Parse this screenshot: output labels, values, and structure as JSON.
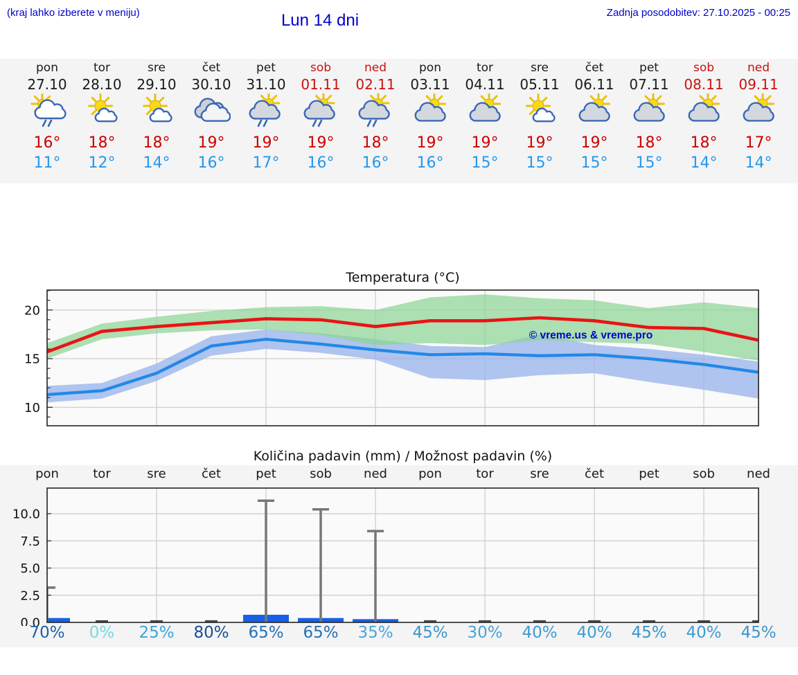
{
  "header": {
    "hint": "(kraj lahko izberete v meniju)",
    "title": "Lun 14 dni",
    "updated": "Zadnja posodobitev: 27.10.2025 - 00:25"
  },
  "colors": {
    "header_blue": "#0000cd",
    "high_temp_red": "#cc0000",
    "low_temp_blue": "#2497ef",
    "weekend_red": "#cc1111",
    "strip_bg": "#f4f4f4",
    "plot_bg": "#fafafa",
    "max_line": "#e81414",
    "min_line": "#2288e8",
    "max_band_green": "#8ed494",
    "min_band_blue": "#96b2ea",
    "precip_bar_blue": "#1661e6",
    "whisker_gray": "#777777"
  },
  "forecast": {
    "days": [
      {
        "name": "pon",
        "date": "27.10",
        "weekend": false,
        "icon": "sun-cloud-rain",
        "high": "16°",
        "low": "11°"
      },
      {
        "name": "tor",
        "date": "28.10",
        "weekend": false,
        "icon": "sun-small-cloud",
        "high": "18°",
        "low": "12°"
      },
      {
        "name": "sre",
        "date": "29.10",
        "weekend": false,
        "icon": "sun-small-cloud",
        "high": "18°",
        "low": "14°"
      },
      {
        "name": "čet",
        "date": "30.10",
        "weekend": false,
        "icon": "cloudy",
        "high": "19°",
        "low": "16°"
      },
      {
        "name": "pet",
        "date": "31.10",
        "weekend": false,
        "icon": "sun-gray-cloud-rain",
        "high": "19°",
        "low": "17°"
      },
      {
        "name": "sob",
        "date": "01.11",
        "weekend": true,
        "icon": "sun-gray-cloud-rain",
        "high": "19°",
        "low": "16°"
      },
      {
        "name": "ned",
        "date": "02.11",
        "weekend": true,
        "icon": "sun-gray-cloud-rain",
        "high": "18°",
        "low": "16°"
      },
      {
        "name": "pon",
        "date": "03.11",
        "weekend": false,
        "icon": "sun-gray-cloud",
        "high": "19°",
        "low": "16°"
      },
      {
        "name": "tor",
        "date": "04.11",
        "weekend": false,
        "icon": "sun-gray-cloud",
        "high": "19°",
        "low": "15°"
      },
      {
        "name": "sre",
        "date": "05.11",
        "weekend": false,
        "icon": "sun-small-cloud",
        "high": "19°",
        "low": "15°"
      },
      {
        "name": "čet",
        "date": "06.11",
        "weekend": false,
        "icon": "sun-gray-cloud",
        "high": "19°",
        "low": "15°"
      },
      {
        "name": "pet",
        "date": "07.11",
        "weekend": false,
        "icon": "sun-gray-cloud",
        "high": "18°",
        "low": "15°"
      },
      {
        "name": "sob",
        "date": "08.11",
        "weekend": true,
        "icon": "sun-gray-cloud",
        "high": "18°",
        "low": "14°"
      },
      {
        "name": "ned",
        "date": "09.11",
        "weekend": true,
        "icon": "sun-gray-cloud",
        "high": "17°",
        "low": "14°"
      }
    ]
  },
  "chart_data": [
    {
      "type": "line",
      "title": "Temperatura (°C)",
      "watermark": "© vreme.us & vreme.pro",
      "categories": [
        "pon 27.10",
        "tor 28.10",
        "sre 29.10",
        "čet 30.10",
        "pet 31.10",
        "sob 01.11",
        "ned 02.11",
        "pon 03.11",
        "tor 04.11",
        "sre 05.11",
        "čet 06.11",
        "pet 07.11",
        "sob 08.11",
        "ned 09.11"
      ],
      "series": [
        {
          "name": "max temperature",
          "color": "#e81414",
          "values": [
            15.7,
            17.8,
            18.3,
            18.7,
            19.1,
            19.0,
            18.3,
            18.9,
            18.9,
            19.2,
            18.9,
            18.2,
            18.1,
            16.9
          ]
        },
        {
          "name": "min temperature",
          "color": "#2288e8",
          "values": [
            11.3,
            11.7,
            13.5,
            16.3,
            17.0,
            16.5,
            15.9,
            15.4,
            15.5,
            15.3,
            15.4,
            15.0,
            14.4,
            13.6
          ]
        },
        {
          "name": "max range high",
          "color": "#8ed494",
          "values": [
            16.6,
            18.6,
            19.3,
            19.9,
            20.3,
            20.4,
            20.0,
            21.3,
            21.6,
            21.2,
            21.0,
            20.2,
            20.8,
            20.2
          ]
        },
        {
          "name": "max range low",
          "color": "#8ed494",
          "values": [
            15.0,
            17.0,
            17.6,
            17.9,
            18.0,
            17.4,
            16.4,
            16.6,
            16.4,
            16.9,
            16.7,
            16.5,
            15.7,
            14.8
          ]
        },
        {
          "name": "min range high",
          "color": "#96b2ea",
          "values": [
            12.2,
            12.5,
            14.5,
            17.3,
            18.0,
            17.6,
            17.0,
            16.3,
            16.2,
            17.5,
            16.4,
            16.0,
            15.4,
            14.7
          ]
        },
        {
          "name": "min range low",
          "color": "#96b2ea",
          "values": [
            10.5,
            10.9,
            12.7,
            15.3,
            16.0,
            15.6,
            14.9,
            13.0,
            12.8,
            13.3,
            13.5,
            12.6,
            11.8,
            10.9
          ]
        }
      ],
      "yticks": [
        10,
        15,
        20
      ],
      "ylim": [
        8.1,
        22.05
      ],
      "grid": true,
      "legend": "none"
    },
    {
      "type": "bar",
      "title": "Količina padavin (mm) / Možnost padavin (%)",
      "categories": [
        "pon",
        "tor",
        "sre",
        "čet",
        "pet",
        "sob",
        "ned",
        "pon",
        "tor",
        "sre",
        "čet",
        "pet",
        "sob",
        "ned"
      ],
      "values": [
        0.4,
        0,
        0,
        0,
        0.7,
        0.4,
        0.3,
        0,
        0,
        0,
        0,
        0,
        0,
        0
      ],
      "whisker_max": [
        3.2,
        0.1,
        0.1,
        0.1,
        11.2,
        10.4,
        8.4,
        0.1,
        0.1,
        0.1,
        0.1,
        0.1,
        0.1,
        0.1
      ],
      "probabilities": [
        {
          "label": "70%",
          "color": "#1f5fa7"
        },
        {
          "label": "0%",
          "color": "#76d9e2"
        },
        {
          "label": "25%",
          "color": "#3ba3d9"
        },
        {
          "label": "80%",
          "color": "#174f95"
        },
        {
          "label": "65%",
          "color": "#2472b4"
        },
        {
          "label": "65%",
          "color": "#2472b4"
        },
        {
          "label": "35%",
          "color": "#4aa6da"
        },
        {
          "label": "45%",
          "color": "#3b95cc"
        },
        {
          "label": "30%",
          "color": "#47a3d8"
        },
        {
          "label": "40%",
          "color": "#3f9bd1"
        },
        {
          "label": "40%",
          "color": "#3f9bd1"
        },
        {
          "label": "45%",
          "color": "#3b95cc"
        },
        {
          "label": "40%",
          "color": "#3f9bd1"
        },
        {
          "label": "45%",
          "color": "#3b95cc"
        }
      ],
      "yticks": [
        0.0,
        2.5,
        5.0,
        7.5,
        10.0
      ],
      "ylim": [
        0,
        12.3
      ],
      "xlabel": "",
      "ylabel": "",
      "grid": true
    }
  ]
}
